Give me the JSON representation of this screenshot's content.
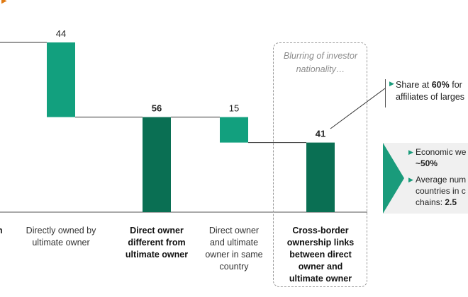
{
  "chart_data": {
    "type": "waterfall",
    "categories": [
      {
        "label": "Directly owned by ultimate owner",
        "lines": [
          "Directly owned by",
          "ultimate owner"
        ],
        "bold": false
      },
      {
        "label": "Direct owner different from ultimate owner",
        "lines": [
          "Direct owner",
          "different from",
          "ultimate owner"
        ],
        "bold": true
      },
      {
        "label": "Direct owner and ultimate owner in same country",
        "lines": [
          "Direct owner",
          "and ultimate",
          "owner in same",
          "country"
        ],
        "bold": false
      },
      {
        "label": "Cross-border ownership links between direct owner and ultimate owner",
        "lines": [
          "Cross-border",
          "ownership links",
          "between direct",
          "owner and",
          "ultimate owner"
        ],
        "bold": true
      }
    ],
    "bars": [
      {
        "value": 44,
        "label": "44",
        "start": 100,
        "end": 56,
        "kind": "delta",
        "color": "#12a07e"
      },
      {
        "value": 56,
        "label": "56",
        "start": 56,
        "end": 0,
        "kind": "total",
        "color": "#0a6f53"
      },
      {
        "value": 15,
        "label": "15",
        "start": 56,
        "end": 41,
        "kind": "delta",
        "color": "#12a07e"
      },
      {
        "value": 41,
        "label": "41",
        "start": 41,
        "end": 0,
        "kind": "total",
        "color": "#0a6f53"
      }
    ],
    "left_cut_label": "n"
  },
  "blur_note": [
    "Blurring of investor",
    "nationality…"
  ],
  "annotation": {
    "prefix": "Share at ",
    "bold": "60%",
    "suffix": " for",
    "line2": "affiliates of larges"
  },
  "panel": {
    "items": [
      {
        "lines": [
          "Economic we"
        ],
        "bold_line": "~50%"
      },
      {
        "lines": [
          "Average num",
          "countries in c"
        ],
        "tail_prefix": "chains: ",
        "tail_bold": "2.5"
      }
    ]
  },
  "colors": {
    "accent": "#1a9b7b",
    "delta": "#12a07e",
    "total": "#0a6f53"
  }
}
